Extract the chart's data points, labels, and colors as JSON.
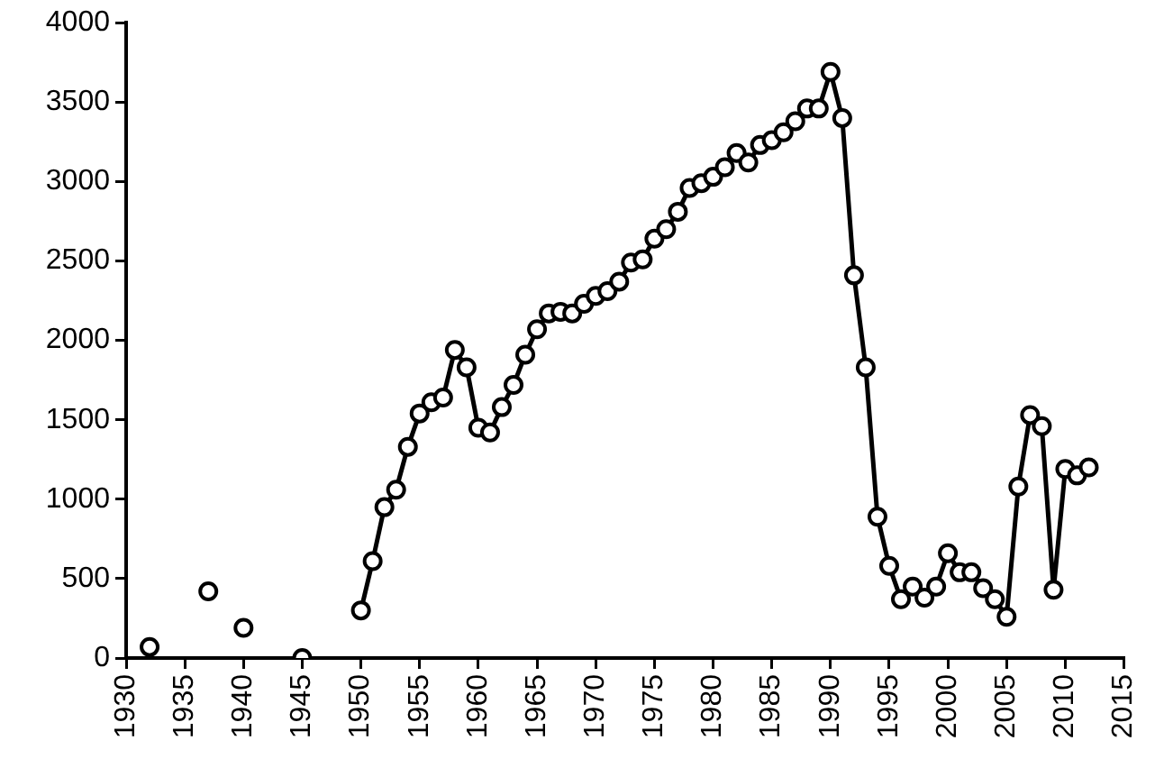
{
  "chart_data": {
    "type": "line",
    "color": "#000000",
    "marker": "circle",
    "line_style": "solid",
    "grid": false,
    "x": [
      1932,
      1933,
      1934,
      1935,
      1936,
      1937,
      1938,
      1939,
      1940,
      1941,
      1942,
      1943,
      1944,
      1945,
      1946,
      1947,
      1948,
      1949,
      1950,
      1951,
      1952,
      1953,
      1954,
      1955,
      1956,
      1957,
      1958,
      1959,
      1960,
      1961,
      1962,
      1963,
      1964,
      1965,
      1966,
      1967,
      1968,
      1969,
      1970,
      1971,
      1972,
      1973,
      1974,
      1975,
      1976,
      1977,
      1978,
      1979,
      1980,
      1981,
      1982,
      1983,
      1984,
      1985,
      1986,
      1987,
      1988,
      1989,
      1990,
      1991,
      1992,
      1993,
      1994,
      1995,
      1996,
      1997,
      1998,
      1999,
      2000,
      2001,
      2002,
      2003,
      2004,
      2005,
      2006,
      2007,
      2008,
      2009,
      2010,
      2011,
      2012
    ],
    "values": [
      70,
      null,
      null,
      null,
      null,
      420,
      null,
      null,
      190,
      null,
      null,
      null,
      null,
      0,
      null,
      null,
      null,
      null,
      300,
      610,
      950,
      1060,
      1330,
      1540,
      1610,
      1640,
      1940,
      1830,
      1450,
      1420,
      1580,
      1720,
      1910,
      2070,
      2170,
      2180,
      2170,
      2230,
      2280,
      2310,
      2370,
      2490,
      2510,
      2640,
      2700,
      2810,
      2960,
      2990,
      3030,
      3090,
      3180,
      3120,
      3230,
      3260,
      3310,
      3380,
      3460,
      3460,
      3690,
      3400,
      2410,
      1830,
      890,
      580,
      370,
      450,
      380,
      450,
      660,
      540,
      540,
      440,
      370,
      260,
      1080,
      1530,
      1460,
      430,
      1190,
      1150,
      1200
    ],
    "xlim": [
      1930,
      2015
    ],
    "xticks": [
      1930,
      1935,
      1940,
      1945,
      1950,
      1955,
      1960,
      1965,
      1970,
      1975,
      1980,
      1985,
      1990,
      1995,
      2000,
      2005,
      2010,
      2015
    ],
    "ylim": [
      0,
      4000
    ],
    "yticks": [
      0,
      500,
      1000,
      1500,
      2000,
      2500,
      3000,
      3500,
      4000
    ]
  }
}
